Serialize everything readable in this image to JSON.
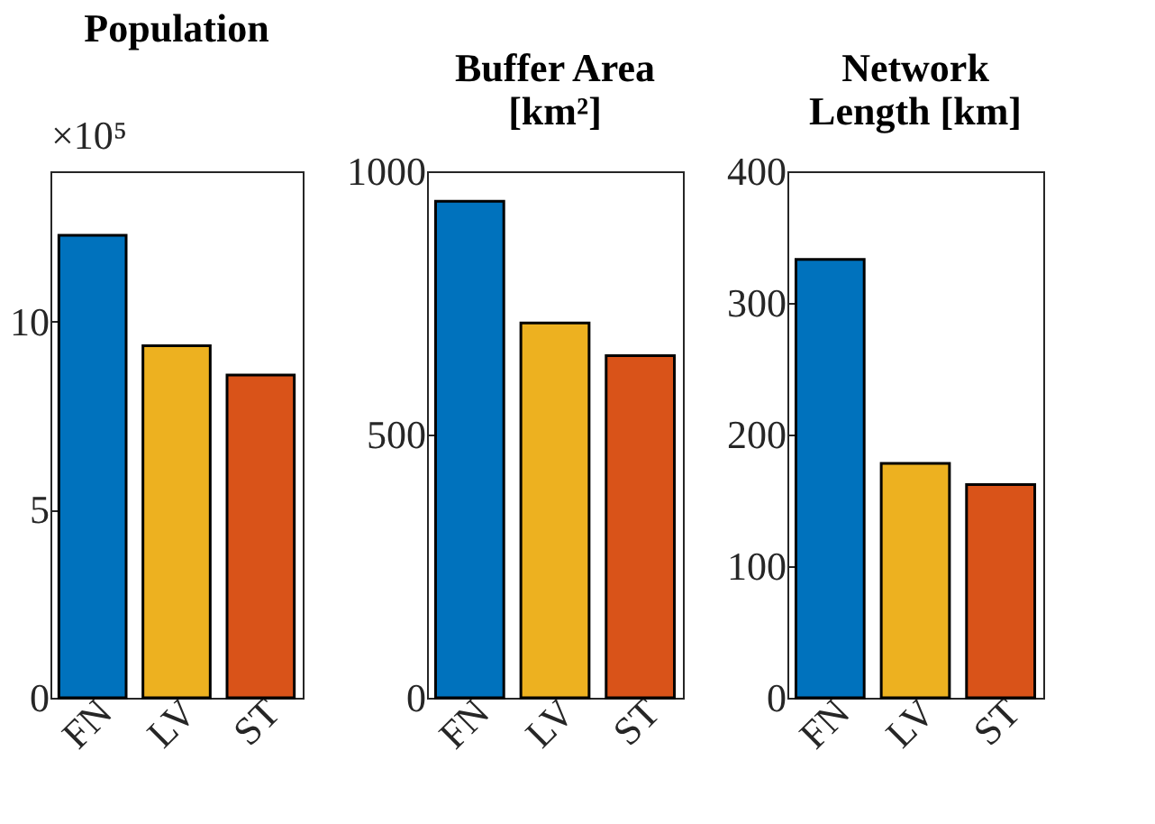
{
  "chart_data": [
    {
      "type": "bar",
      "title": "Population",
      "annotations": [
        "×10⁵"
      ],
      "categories": [
        "FN",
        "LV",
        "ST"
      ],
      "values": [
        12.3,
        9.36,
        8.58
      ],
      "colors": [
        "#0072bd",
        "#edb120",
        "#d95319"
      ],
      "ylim": [
        0,
        14
      ],
      "yticks": [
        0,
        5,
        10
      ]
    },
    {
      "type": "bar",
      "title": "Buffer Area\n[km²]",
      "categories": [
        "FN",
        "LV",
        "ST"
      ],
      "values": [
        943,
        712,
        650
      ],
      "colors": [
        "#0072bd",
        "#edb120",
        "#d95319"
      ],
      "ylim": [
        0,
        1000
      ],
      "yticks": [
        0,
        500,
        1000
      ]
    },
    {
      "type": "bar",
      "title": "Network\nLength [km]",
      "categories": [
        "FN",
        "LV",
        "ST"
      ],
      "values": [
        333,
        178,
        162
      ],
      "colors": [
        "#0072bd",
        "#edb120",
        "#d95319"
      ],
      "ylim": [
        0,
        400
      ],
      "yticks": [
        0,
        100,
        200,
        300,
        400
      ]
    }
  ]
}
